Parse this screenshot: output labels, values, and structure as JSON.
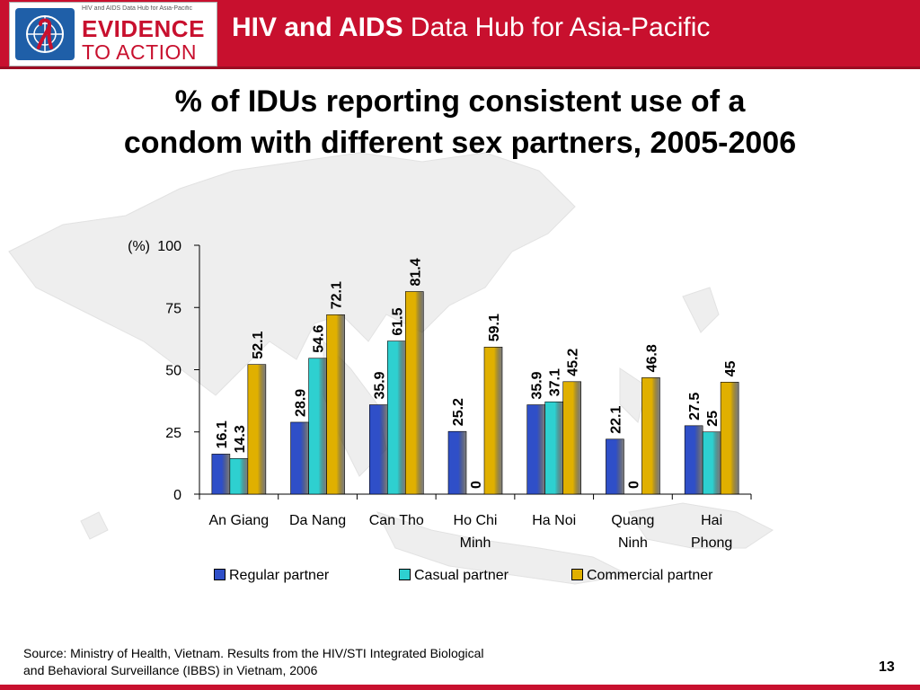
{
  "header": {
    "title_bold": "HIV and AIDS",
    "title_rest": "Data Hub for Asia-Pacific",
    "logo_small_text": "HIV and AIDS Data Hub for Asia-Pacific",
    "logo_line1": "EVIDENCE",
    "logo_line2": "TO ACTION",
    "colors": {
      "header_red": "#c8102e",
      "logo_blue": "#1f5fa8"
    }
  },
  "slide": {
    "title": "% of IDUs reporting consistent use of a\ncondom with different sex partners, 2005-2006",
    "source": "Source: Ministry of Health, Vietnam. Results from the HIV/STI Integrated Biological\nand Behavioral Surveillance (IBBS) in Vietnam, 2006",
    "page_number": "13"
  },
  "chart_data": {
    "type": "bar",
    "ylabel": "(%)",
    "ylim": [
      0,
      100
    ],
    "yticks": [
      "0",
      "25",
      "50",
      "75",
      "100"
    ],
    "categories": [
      "An Giang",
      "Da Nang",
      "Can Tho",
      "Ho Chi Minh",
      "Ha Noi",
      "Quang Ninh",
      "Hai Phong"
    ],
    "category_labels": [
      [
        "An Giang"
      ],
      [
        "Da Nang"
      ],
      [
        "Can Tho"
      ],
      [
        "Ho Chi",
        "Minh"
      ],
      [
        "Ha Noi"
      ],
      [
        "Quang",
        "Ninh"
      ],
      [
        "Hai",
        "Phong"
      ]
    ],
    "series": [
      {
        "name": "Regular partner",
        "color": "#2f4fc8",
        "values": [
          16.1,
          28.9,
          35.9,
          25.2,
          35.9,
          22.1,
          27.5
        ],
        "labels": [
          "16.1",
          "28.9",
          "35.9",
          "25.2",
          "35.9",
          "22.1",
          "27.5"
        ]
      },
      {
        "name": "Casual partner",
        "color": "#2ed0d0",
        "values": [
          14.3,
          54.6,
          61.5,
          0,
          37.1,
          0,
          25
        ],
        "labels": [
          "14.3",
          "54.6",
          "61.5",
          "0",
          "37.1",
          "0",
          "25"
        ]
      },
      {
        "name": "Commercial partner",
        "color": "#e0b000",
        "values": [
          52.1,
          72.1,
          81.4,
          59.1,
          45.2,
          46.8,
          45
        ],
        "labels": [
          "52.1",
          "72.1",
          "81.4",
          "59.1",
          "45.2",
          "46.8",
          "45"
        ]
      }
    ],
    "legend_position": "bottom",
    "grid": false
  }
}
